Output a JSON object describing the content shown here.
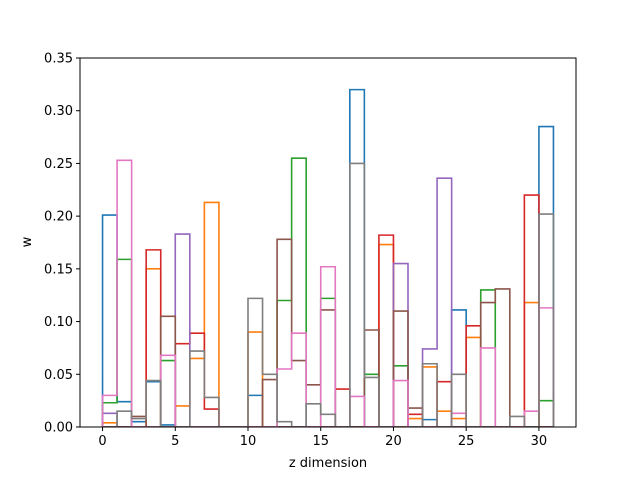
{
  "chart_data": {
    "type": "step-histogram",
    "xlabel": "z dimension",
    "ylabel": "w",
    "xlim": [
      -1.55,
      32.55
    ],
    "ylim": [
      0,
      0.35
    ],
    "xticks": [
      0,
      5,
      10,
      15,
      20,
      25,
      30
    ],
    "yticks": [
      0.0,
      0.05,
      0.1,
      0.15,
      0.2,
      0.25,
      0.3,
      0.35
    ],
    "ytick_labels": [
      "0.00",
      "0.05",
      "0.10",
      "0.15",
      "0.20",
      "0.25",
      "0.30",
      "0.35"
    ],
    "bin_start": 0,
    "bin_width": 1,
    "grid": false,
    "series": [
      {
        "color": "#1f77b4",
        "values": [
          0.201,
          0.024,
          0.005,
          0.043,
          0.002,
          0.0,
          0.0,
          0.0,
          0.0,
          0.0,
          0.03,
          0.0,
          0.0,
          0.0,
          0.0,
          0.0,
          0.0,
          0.32,
          0.0,
          0.0,
          0.0,
          0.0,
          0.007,
          0.0,
          0.111,
          0.0,
          0.0,
          0.0,
          0.0,
          0.0,
          0.285
        ]
      },
      {
        "color": "#ff7f0e",
        "values": [
          0.004,
          0.0,
          0.0,
          0.15,
          0.0,
          0.02,
          0.065,
          0.213,
          0.0,
          0.0,
          0.09,
          0.0,
          0.0,
          0.0,
          0.0,
          0.0,
          0.0,
          0.0,
          0.0,
          0.173,
          0.0,
          0.008,
          0.057,
          0.015,
          0.008,
          0.085,
          0.0,
          0.0,
          0.0,
          0.118,
          0.0
        ]
      },
      {
        "color": "#2ca02c",
        "values": [
          0.023,
          0.159,
          0.0,
          0.0,
          0.063,
          0.0,
          0.0,
          0.0,
          0.0,
          0.0,
          0.0,
          0.0,
          0.12,
          0.255,
          0.0,
          0.122,
          0.0,
          0.0,
          0.05,
          0.0,
          0.058,
          0.0,
          0.0,
          0.0,
          0.0,
          0.0,
          0.13,
          0.0,
          0.0,
          0.0,
          0.025
        ]
      },
      {
        "color": "#d62728",
        "values": [
          0.0,
          0.0,
          0.0,
          0.168,
          0.0,
          0.079,
          0.089,
          0.017,
          0.0,
          0.0,
          0.0,
          0.0,
          0.0,
          0.0,
          0.0,
          0.0,
          0.036,
          0.0,
          0.0,
          0.182,
          0.0,
          0.012,
          0.0,
          0.043,
          0.0,
          0.096,
          0.0,
          0.0,
          0.0,
          0.22,
          0.0
        ]
      },
      {
        "color": "#9467bd",
        "values": [
          0.013,
          0.0,
          0.0,
          0.0,
          0.0,
          0.183,
          0.0,
          0.0,
          0.0,
          0.0,
          0.0,
          0.0,
          0.0,
          0.0,
          0.0,
          0.0,
          0.0,
          0.0,
          0.0,
          0.0,
          0.155,
          0.0,
          0.074,
          0.236,
          0.0,
          0.0,
          0.0,
          0.0,
          0.0,
          0.0,
          0.0
        ]
      },
      {
        "color": "#8c564b",
        "values": [
          0.0,
          0.0,
          0.01,
          0.0,
          0.105,
          0.0,
          0.0,
          0.0,
          0.0,
          0.0,
          0.0,
          0.045,
          0.178,
          0.063,
          0.04,
          0.111,
          0.0,
          0.0,
          0.092,
          0.0,
          0.11,
          0.018,
          0.0,
          0.0,
          0.0,
          0.0,
          0.118,
          0.131,
          0.0,
          0.0,
          0.0
        ]
      },
      {
        "color": "#e377c2",
        "values": [
          0.03,
          0.253,
          0.0,
          0.0,
          0.068,
          0.0,
          0.0,
          0.0,
          0.0,
          0.0,
          0.0,
          0.0,
          0.055,
          0.089,
          0.0,
          0.152,
          0.0,
          0.029,
          0.0,
          0.0,
          0.044,
          0.0,
          0.0,
          0.0,
          0.013,
          0.0,
          0.075,
          0.0,
          0.0,
          0.015,
          0.113
        ]
      },
      {
        "color": "#7f7f7f",
        "values": [
          0.0,
          0.015,
          0.008,
          0.044,
          0.0,
          0.0,
          0.072,
          0.028,
          0.0,
          0.0,
          0.122,
          0.05,
          0.005,
          0.0,
          0.022,
          0.012,
          0.0,
          0.25,
          0.047,
          0.0,
          0.0,
          0.0,
          0.06,
          0.0,
          0.05,
          0.0,
          0.0,
          0.0,
          0.01,
          0.0,
          0.202
        ]
      }
    ]
  }
}
